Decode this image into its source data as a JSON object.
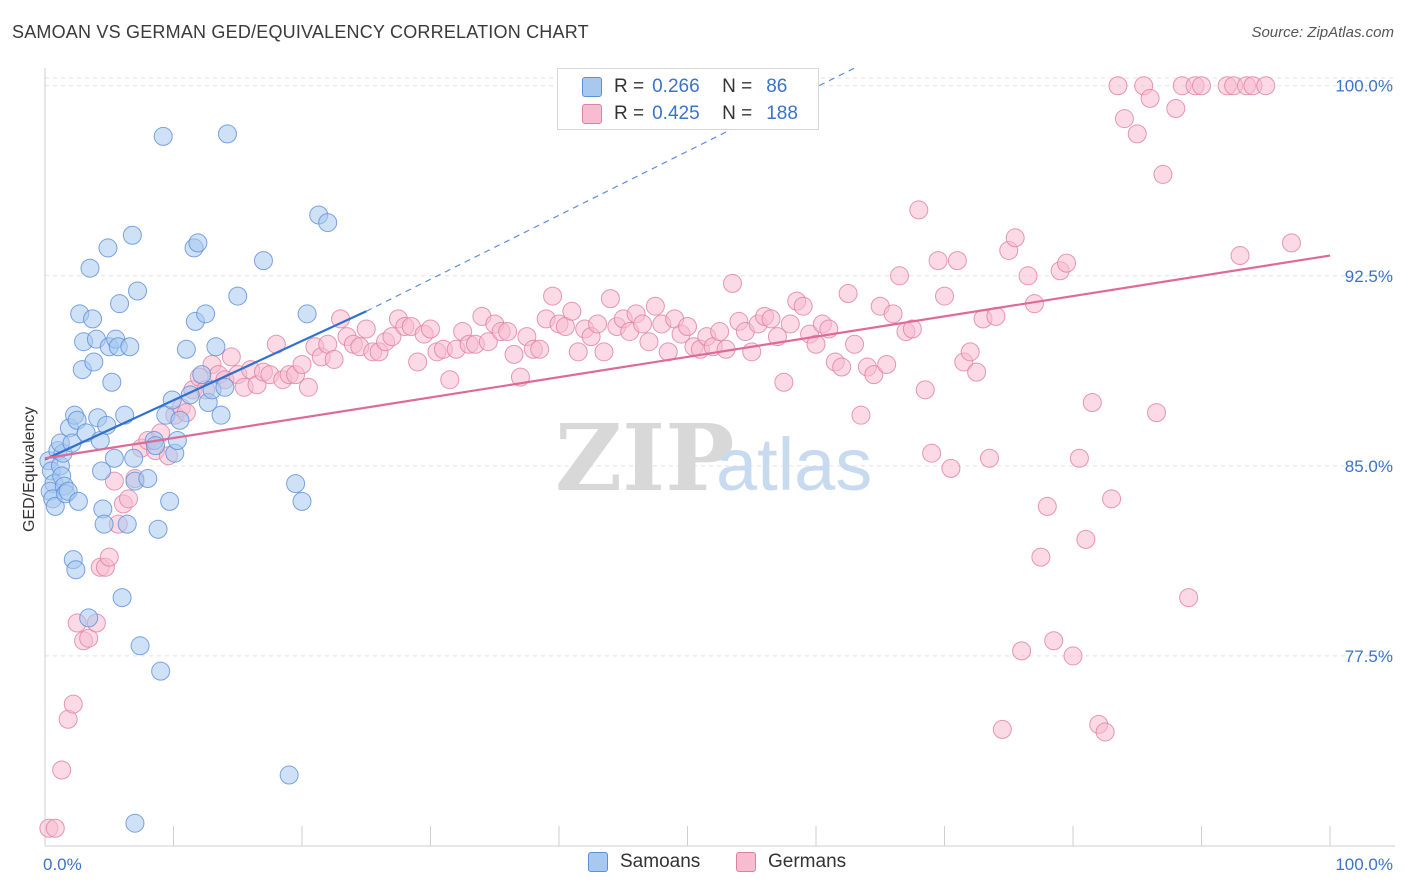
{
  "title": "SAMOAN VS GERMAN GED/EQUIVALENCY CORRELATION CHART",
  "source": "Source: ZipAtlas.com",
  "watermark": {
    "zip": "ZIP",
    "atlas": "atlas"
  },
  "legend": {
    "series": [
      {
        "r_label": "R =",
        "r_value": "0.266",
        "n_label": "N =",
        "n_value": "86",
        "color": "#a8c8f0",
        "stroke": "#5b8fd8"
      },
      {
        "r_label": "R =",
        "r_value": "0.425",
        "n_label": "N =",
        "n_value": "188",
        "color": "#f8bcd0",
        "stroke": "#e07fa0"
      }
    ]
  },
  "bottom_legend": [
    {
      "label": "Samoans",
      "color": "#a8c8f0",
      "stroke": "#5b8fd8"
    },
    {
      "label": "Germans",
      "color": "#f8bcd0",
      "stroke": "#e07fa0"
    }
  ],
  "chart_data": {
    "type": "scatter",
    "title": "SAMOAN VS GERMAN GED/EQUIVALENCY CORRELATION CHART",
    "xlabel": "",
    "ylabel": "GED/Equivalency",
    "x_tick_labels": [
      "0.0%",
      "100.0%"
    ],
    "y_tick_labels": [
      "100.0%",
      "92.5%",
      "85.0%",
      "77.5%"
    ],
    "y_ticks": [
      100.0,
      92.5,
      85.0,
      77.5
    ],
    "xlim": [
      0,
      100
    ],
    "ylim": [
      70.0,
      100.7
    ],
    "grid": true,
    "series": [
      {
        "name": "Samoans",
        "color": "#a8c8f0",
        "stroke": "#5b8fd8",
        "trend": {
          "x0": 0,
          "y0": 85.25,
          "x1": 25,
          "y1": 91.1,
          "dash_to_x": 63,
          "dash_to_y": 100.7
        },
        "points": [
          [
            0.3,
            85.2
          ],
          [
            0.5,
            84.8
          ],
          [
            0.7,
            84.3
          ],
          [
            0.4,
            84.0
          ],
          [
            0.6,
            83.7
          ],
          [
            0.8,
            83.4
          ],
          [
            1.0,
            85.6
          ],
          [
            1.2,
            85.0
          ],
          [
            1.3,
            84.6
          ],
          [
            1.5,
            84.2
          ],
          [
            1.6,
            83.9
          ],
          [
            1.8,
            84.0
          ],
          [
            1.4,
            85.5
          ],
          [
            1.2,
            85.9
          ],
          [
            1.9,
            86.5
          ],
          [
            2.1,
            85.9
          ],
          [
            2.3,
            87.0
          ],
          [
            2.2,
            81.3
          ],
          [
            2.4,
            80.9
          ],
          [
            2.5,
            86.8
          ],
          [
            2.6,
            83.6
          ],
          [
            2.7,
            91.0
          ],
          [
            2.9,
            88.8
          ],
          [
            3.0,
            89.9
          ],
          [
            3.2,
            86.3
          ],
          [
            3.4,
            79.0
          ],
          [
            3.5,
            92.8
          ],
          [
            3.7,
            90.8
          ],
          [
            3.8,
            89.1
          ],
          [
            4.0,
            90.0
          ],
          [
            4.1,
            86.9
          ],
          [
            4.3,
            86.0
          ],
          [
            4.4,
            84.8
          ],
          [
            4.5,
            83.3
          ],
          [
            4.6,
            82.7
          ],
          [
            4.8,
            86.6
          ],
          [
            4.9,
            93.6
          ],
          [
            5.0,
            89.7
          ],
          [
            5.2,
            88.3
          ],
          [
            5.4,
            85.3
          ],
          [
            5.5,
            90.0
          ],
          [
            5.7,
            89.7
          ],
          [
            5.8,
            91.4
          ],
          [
            6.0,
            79.8
          ],
          [
            6.2,
            87.0
          ],
          [
            6.4,
            82.7
          ],
          [
            6.6,
            89.7
          ],
          [
            6.8,
            94.1
          ],
          [
            6.9,
            85.3
          ],
          [
            7.0,
            84.4
          ],
          [
            7.2,
            91.9
          ],
          [
            7.4,
            77.9
          ],
          [
            7.0,
            70.9
          ],
          [
            8.0,
            84.5
          ],
          [
            8.5,
            86.0
          ],
          [
            8.6,
            85.8
          ],
          [
            8.8,
            82.5
          ],
          [
            9.0,
            76.9
          ],
          [
            9.2,
            98.0
          ],
          [
            9.4,
            87.0
          ],
          [
            9.7,
            83.6
          ],
          [
            9.9,
            87.6
          ],
          [
            10.1,
            85.5
          ],
          [
            10.3,
            86.0
          ],
          [
            10.5,
            86.8
          ],
          [
            11.0,
            89.6
          ],
          [
            11.3,
            87.8
          ],
          [
            11.6,
            93.6
          ],
          [
            11.7,
            90.7
          ],
          [
            11.9,
            93.8
          ],
          [
            12.2,
            88.6
          ],
          [
            12.5,
            91.0
          ],
          [
            12.7,
            87.5
          ],
          [
            13.0,
            88.0
          ],
          [
            13.3,
            89.7
          ],
          [
            13.7,
            87.0
          ],
          [
            14.0,
            88.1
          ],
          [
            14.2,
            98.1
          ],
          [
            15.0,
            91.7
          ],
          [
            17.0,
            93.1
          ],
          [
            19.0,
            72.8
          ],
          [
            19.5,
            84.3
          ],
          [
            20.0,
            83.6
          ],
          [
            20.4,
            91.0
          ],
          [
            21.3,
            94.9
          ],
          [
            22.0,
            94.6
          ]
        ]
      },
      {
        "name": "Germans",
        "color": "#f8bcd0",
        "stroke": "#e07fa0",
        "trend": {
          "x0": 0,
          "y0": 85.3,
          "x1": 100,
          "y1": 93.3
        },
        "points": [
          [
            0.3,
            70.7
          ],
          [
            0.8,
            70.7
          ],
          [
            1.3,
            73.0
          ],
          [
            1.8,
            75.0
          ],
          [
            2.2,
            75.6
          ],
          [
            2.5,
            78.8
          ],
          [
            3.0,
            78.1
          ],
          [
            3.4,
            78.2
          ],
          [
            4.0,
            78.8
          ],
          [
            4.3,
            81.0
          ],
          [
            4.7,
            81.0
          ],
          [
            5.0,
            81.4
          ],
          [
            5.4,
            84.4
          ],
          [
            5.7,
            82.7
          ],
          [
            6.1,
            83.5
          ],
          [
            6.5,
            83.7
          ],
          [
            7.0,
            84.5
          ],
          [
            7.5,
            85.7
          ],
          [
            8.0,
            86.0
          ],
          [
            8.6,
            85.6
          ],
          [
            9.0,
            86.3
          ],
          [
            9.6,
            85.4
          ],
          [
            10.1,
            87.0
          ],
          [
            10.6,
            87.3
          ],
          [
            11.0,
            87.1
          ],
          [
            11.5,
            88.0
          ],
          [
            12.0,
            88.5
          ],
          [
            12.5,
            88.0
          ],
          [
            13.0,
            89.0
          ],
          [
            13.5,
            88.6
          ],
          [
            14.0,
            88.4
          ],
          [
            14.5,
            89.3
          ],
          [
            15.0,
            88.6
          ],
          [
            15.5,
            88.1
          ],
          [
            16.0,
            88.8
          ],
          [
            16.5,
            88.2
          ],
          [
            17.0,
            88.7
          ],
          [
            17.5,
            88.6
          ],
          [
            18.0,
            89.8
          ],
          [
            18.5,
            88.4
          ],
          [
            19.0,
            88.6
          ],
          [
            19.5,
            88.6
          ],
          [
            20.0,
            89.0
          ],
          [
            20.5,
            88.1
          ],
          [
            21.0,
            89.7
          ],
          [
            21.5,
            89.3
          ],
          [
            22.0,
            89.8
          ],
          [
            22.5,
            89.2
          ],
          [
            23.0,
            90.8
          ],
          [
            23.5,
            90.1
          ],
          [
            24.0,
            89.8
          ],
          [
            24.5,
            89.7
          ],
          [
            25.0,
            90.4
          ],
          [
            25.5,
            89.5
          ],
          [
            26.0,
            89.5
          ],
          [
            26.5,
            89.9
          ],
          [
            27.0,
            90.1
          ],
          [
            27.5,
            90.8
          ],
          [
            28.0,
            90.5
          ],
          [
            28.5,
            90.5
          ],
          [
            29.0,
            89.1
          ],
          [
            29.5,
            90.2
          ],
          [
            30.0,
            90.4
          ],
          [
            30.5,
            89.5
          ],
          [
            31.0,
            89.6
          ],
          [
            31.5,
            88.4
          ],
          [
            32.0,
            89.6
          ],
          [
            32.5,
            90.3
          ],
          [
            33.0,
            89.8
          ],
          [
            33.5,
            89.8
          ],
          [
            34.0,
            90.9
          ],
          [
            34.5,
            89.9
          ],
          [
            35.0,
            90.6
          ],
          [
            35.5,
            90.3
          ],
          [
            36.0,
            90.3
          ],
          [
            36.5,
            89.4
          ],
          [
            37.0,
            88.5
          ],
          [
            37.5,
            90.1
          ],
          [
            38.0,
            89.6
          ],
          [
            38.5,
            89.6
          ],
          [
            39.0,
            90.8
          ],
          [
            39.5,
            91.7
          ],
          [
            40.0,
            90.6
          ],
          [
            40.5,
            90.5
          ],
          [
            41.0,
            91.1
          ],
          [
            41.5,
            89.5
          ],
          [
            42.0,
            90.4
          ],
          [
            42.5,
            90.1
          ],
          [
            43.0,
            90.6
          ],
          [
            43.5,
            89.5
          ],
          [
            44.0,
            91.6
          ],
          [
            44.5,
            90.5
          ],
          [
            45.0,
            90.8
          ],
          [
            45.5,
            90.3
          ],
          [
            46.0,
            91.0
          ],
          [
            46.5,
            90.6
          ],
          [
            47.0,
            89.9
          ],
          [
            47.5,
            91.3
          ],
          [
            48.0,
            90.6
          ],
          [
            48.5,
            89.5
          ],
          [
            49.0,
            90.8
          ],
          [
            49.5,
            90.2
          ],
          [
            50.0,
            90.5
          ],
          [
            50.5,
            89.7
          ],
          [
            51.0,
            89.6
          ],
          [
            51.5,
            90.1
          ],
          [
            52.0,
            89.7
          ],
          [
            52.5,
            90.3
          ],
          [
            53.0,
            89.6
          ],
          [
            53.5,
            92.2
          ],
          [
            54.0,
            90.7
          ],
          [
            54.5,
            90.3
          ],
          [
            55.0,
            89.5
          ],
          [
            55.5,
            90.6
          ],
          [
            56.0,
            90.9
          ],
          [
            56.5,
            90.8
          ],
          [
            57.0,
            90.1
          ],
          [
            57.5,
            88.3
          ],
          [
            58.0,
            90.6
          ],
          [
            58.5,
            91.5
          ],
          [
            59.0,
            91.3
          ],
          [
            59.5,
            90.2
          ],
          [
            60.0,
            89.8
          ],
          [
            60.5,
            90.6
          ],
          [
            61.0,
            90.4
          ],
          [
            61.5,
            89.1
          ],
          [
            62.0,
            88.9
          ],
          [
            62.5,
            91.8
          ],
          [
            63.0,
            89.8
          ],
          [
            63.5,
            87.0
          ],
          [
            64.0,
            88.9
          ],
          [
            64.5,
            88.6
          ],
          [
            65.0,
            91.3
          ],
          [
            65.5,
            89.0
          ],
          [
            66.0,
            91.0
          ],
          [
            66.5,
            92.5
          ],
          [
            67.0,
            90.3
          ],
          [
            67.5,
            90.4
          ],
          [
            68.0,
            95.1
          ],
          [
            68.5,
            88.0
          ],
          [
            69.0,
            85.5
          ],
          [
            69.5,
            93.1
          ],
          [
            70.0,
            91.7
          ],
          [
            70.5,
            84.9
          ],
          [
            71.0,
            93.1
          ],
          [
            71.5,
            89.1
          ],
          [
            72.0,
            89.5
          ],
          [
            72.5,
            88.7
          ],
          [
            73.0,
            90.8
          ],
          [
            73.5,
            85.3
          ],
          [
            74.0,
            90.9
          ],
          [
            74.5,
            74.6
          ],
          [
            75.0,
            93.5
          ],
          [
            75.5,
            94.0
          ],
          [
            76.0,
            77.7
          ],
          [
            76.5,
            92.5
          ],
          [
            77.0,
            91.4
          ],
          [
            77.5,
            81.4
          ],
          [
            78.0,
            83.4
          ],
          [
            78.5,
            78.1
          ],
          [
            79.0,
            92.7
          ],
          [
            79.5,
            93.0
          ],
          [
            80.0,
            77.5
          ],
          [
            80.5,
            85.3
          ],
          [
            81.0,
            82.1
          ],
          [
            81.5,
            87.5
          ],
          [
            82.0,
            74.8
          ],
          [
            82.5,
            74.5
          ],
          [
            83.0,
            83.7
          ],
          [
            83.5,
            100.0
          ],
          [
            84.0,
            98.7
          ],
          [
            85.0,
            98.1
          ],
          [
            85.5,
            100.0
          ],
          [
            86.0,
            99.5
          ],
          [
            86.5,
            87.1
          ],
          [
            87.0,
            96.5
          ],
          [
            88.0,
            99.1
          ],
          [
            88.5,
            100.0
          ],
          [
            89.0,
            79.8
          ],
          [
            89.5,
            100.0
          ],
          [
            90.0,
            100.0
          ],
          [
            92.0,
            100.0
          ],
          [
            92.5,
            100.0
          ],
          [
            93.0,
            93.3
          ],
          [
            93.5,
            100.0
          ],
          [
            94.0,
            100.0
          ],
          [
            95.0,
            100.0
          ],
          [
            97.0,
            93.8
          ]
        ]
      }
    ]
  }
}
